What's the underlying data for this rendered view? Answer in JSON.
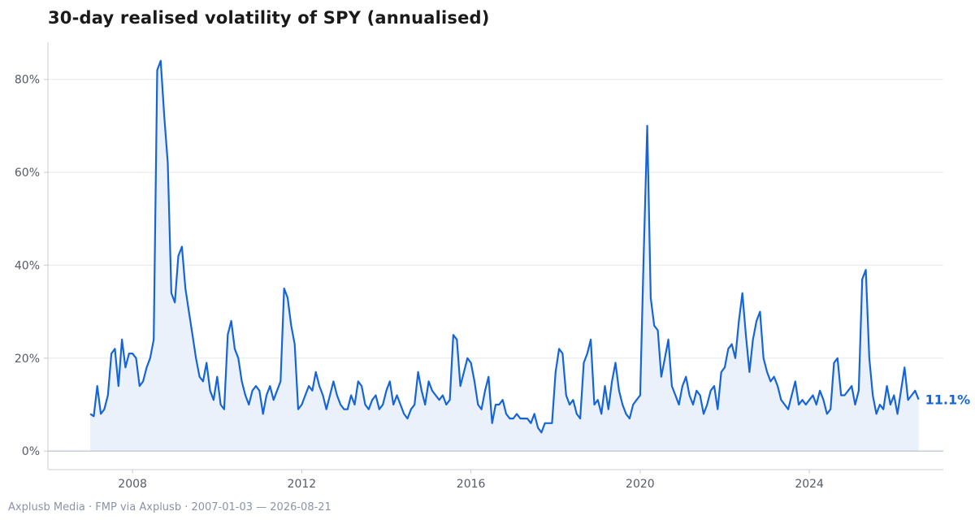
{
  "title": "30-day realised volatility of SPY (annualised)",
  "footer": "Axplusb Media · FMP via Axplusb · 2007-01-03 — 2026-08-21",
  "colors": {
    "line": "#1565d8",
    "area": "#eaf1fb",
    "grid": "#e6e8ec",
    "axis": "#c9ccd3",
    "zero": "#a9b4c6"
  },
  "chart_data": {
    "type": "area",
    "title": "30-day realised volatility of SPY (annualised)",
    "xlabel": "",
    "ylabel": "",
    "x_ticks": [
      "2008",
      "2012",
      "2016",
      "2020",
      "2024"
    ],
    "y_ticks": [
      "0%",
      "20%",
      "40%",
      "60%",
      "80%"
    ],
    "xlim": [
      "2006-01",
      "2027-03"
    ],
    "ylim": [
      -4,
      88
    ],
    "grid": "horizontal",
    "last_value_label": "11.1%",
    "series": [
      {
        "x": [
          "2007-01",
          "2007-02",
          "2007-03",
          "2007-04",
          "2007-05",
          "2007-06",
          "2007-07",
          "2007-08",
          "2007-09",
          "2007-10",
          "2007-11",
          "2007-12",
          "2008-01",
          "2008-02",
          "2008-03",
          "2008-04",
          "2008-05",
          "2008-06",
          "2008-07",
          "2008-08",
          "2008-09",
          "2008-10",
          "2008-11",
          "2008-12",
          "2009-01",
          "2009-02",
          "2009-03",
          "2009-04",
          "2009-05",
          "2009-06",
          "2009-07",
          "2009-08",
          "2009-09",
          "2009-10",
          "2009-11",
          "2009-12",
          "2010-01",
          "2010-02",
          "2010-03",
          "2010-04",
          "2010-05",
          "2010-06",
          "2010-07",
          "2010-08",
          "2010-09",
          "2010-10",
          "2010-11",
          "2010-12",
          "2011-01",
          "2011-02",
          "2011-03",
          "2011-04",
          "2011-05",
          "2011-06",
          "2011-07",
          "2011-08",
          "2011-09",
          "2011-10",
          "2011-11",
          "2011-12",
          "2012-01",
          "2012-02",
          "2012-03",
          "2012-04",
          "2012-05",
          "2012-06",
          "2012-07",
          "2012-08",
          "2012-09",
          "2012-10",
          "2012-11",
          "2012-12",
          "2013-01",
          "2013-02",
          "2013-03",
          "2013-04",
          "2013-05",
          "2013-06",
          "2013-07",
          "2013-08",
          "2013-09",
          "2013-10",
          "2013-11",
          "2013-12",
          "2014-01",
          "2014-02",
          "2014-03",
          "2014-04",
          "2014-05",
          "2014-06",
          "2014-07",
          "2014-08",
          "2014-09",
          "2014-10",
          "2014-11",
          "2014-12",
          "2015-01",
          "2015-02",
          "2015-03",
          "2015-04",
          "2015-05",
          "2015-06",
          "2015-07",
          "2015-08",
          "2015-09",
          "2015-10",
          "2015-11",
          "2015-12",
          "2016-01",
          "2016-02",
          "2016-03",
          "2016-04",
          "2016-05",
          "2016-06",
          "2016-07",
          "2016-08",
          "2016-09",
          "2016-10",
          "2016-11",
          "2016-12",
          "2017-01",
          "2017-02",
          "2017-03",
          "2017-04",
          "2017-05",
          "2017-06",
          "2017-07",
          "2017-08",
          "2017-09",
          "2017-10",
          "2017-11",
          "2017-12",
          "2018-01",
          "2018-02",
          "2018-03",
          "2018-04",
          "2018-05",
          "2018-06",
          "2018-07",
          "2018-08",
          "2018-09",
          "2018-10",
          "2018-11",
          "2018-12",
          "2019-01",
          "2019-02",
          "2019-03",
          "2019-04",
          "2019-05",
          "2019-06",
          "2019-07",
          "2019-08",
          "2019-09",
          "2019-10",
          "2019-11",
          "2019-12",
          "2020-01",
          "2020-02",
          "2020-03",
          "2020-04",
          "2020-05",
          "2020-06",
          "2020-07",
          "2020-08",
          "2020-09",
          "2020-10",
          "2020-11",
          "2020-12",
          "2021-01",
          "2021-02",
          "2021-03",
          "2021-04",
          "2021-05",
          "2021-06",
          "2021-07",
          "2021-08",
          "2021-09",
          "2021-10",
          "2021-11",
          "2021-12",
          "2022-01",
          "2022-02",
          "2022-03",
          "2022-04",
          "2022-05",
          "2022-06",
          "2022-07",
          "2022-08",
          "2022-09",
          "2022-10",
          "2022-11",
          "2022-12",
          "2023-01",
          "2023-02",
          "2023-03",
          "2023-04",
          "2023-05",
          "2023-06",
          "2023-07",
          "2023-08",
          "2023-09",
          "2023-10",
          "2023-11",
          "2023-12",
          "2024-01",
          "2024-02",
          "2024-03",
          "2024-04",
          "2024-05",
          "2024-06",
          "2024-07",
          "2024-08",
          "2024-09",
          "2024-10",
          "2024-11",
          "2024-12",
          "2025-01",
          "2025-02",
          "2025-03",
          "2025-04",
          "2025-05",
          "2025-06",
          "2025-07",
          "2025-08",
          "2025-09",
          "2025-10",
          "2025-11",
          "2025-12",
          "2026-01",
          "2026-02",
          "2026-03",
          "2026-04",
          "2026-05",
          "2026-06",
          "2026-07",
          "2026-08"
        ],
        "values": [
          8,
          7.5,
          14,
          8,
          9,
          12,
          21,
          22,
          14,
          24,
          18,
          21,
          21,
          20,
          14,
          15,
          18,
          20,
          24,
          82,
          84,
          72,
          62,
          34,
          32,
          42,
          44,
          35,
          30,
          25,
          20,
          16,
          15,
          19,
          13,
          11,
          16,
          10,
          9,
          25,
          28,
          22,
          20,
          15,
          12,
          10,
          13,
          14,
          13,
          8,
          12,
          14,
          11,
          13,
          15,
          35,
          33,
          27,
          23,
          9,
          10,
          12,
          14,
          13,
          17,
          14,
          12,
          9,
          12,
          15,
          12,
          10,
          9,
          9,
          12,
          10,
          15,
          14,
          10,
          9,
          11,
          12,
          9,
          10,
          13,
          15,
          10,
          12,
          10,
          8,
          7,
          9,
          10,
          17,
          13,
          10,
          15,
          13,
          12,
          11,
          12,
          10,
          11,
          25,
          24,
          14,
          17,
          20,
          19,
          15,
          10,
          9,
          13,
          16,
          6,
          10,
          10,
          11,
          8,
          7,
          7,
          8,
          7,
          7,
          7,
          6,
          8,
          5,
          4,
          6,
          6,
          6,
          17,
          22,
          21,
          12,
          10,
          11,
          8,
          7,
          19,
          21,
          24,
          10,
          11,
          8,
          14,
          9,
          15,
          19,
          13,
          10,
          8,
          7,
          10,
          11,
          12,
          42,
          70,
          33,
          27,
          26,
          16,
          20,
          24,
          14,
          12,
          10,
          14,
          16,
          12,
          10,
          13,
          12,
          8,
          10,
          13,
          14,
          9,
          17,
          18,
          22,
          23,
          20,
          28,
          34,
          25,
          17,
          24,
          28,
          30,
          20,
          17,
          15,
          16,
          14,
          11,
          10,
          9,
          12,
          15,
          10,
          11,
          10,
          11,
          12,
          10,
          13,
          11,
          8,
          9,
          19,
          20,
          12,
          12,
          13,
          14,
          10,
          13,
          37,
          39,
          20,
          12,
          8,
          10,
          9,
          14,
          10,
          12,
          8,
          13,
          18,
          11,
          12,
          13,
          11.1
        ]
      }
    ]
  }
}
